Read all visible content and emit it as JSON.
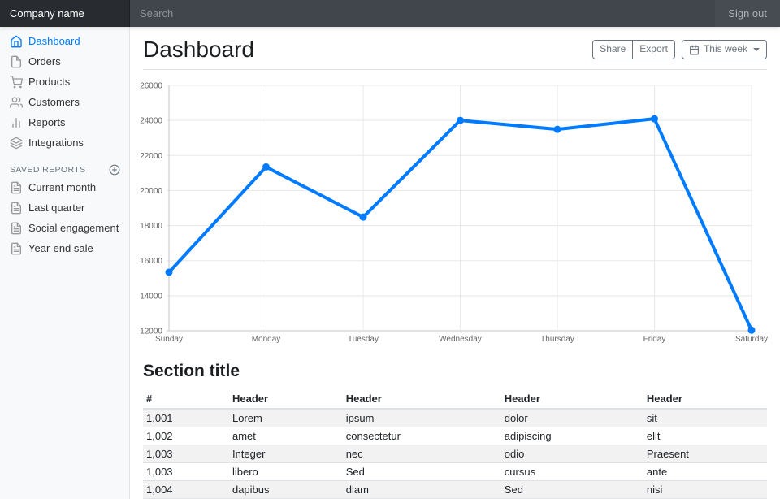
{
  "navbar": {
    "brand": "Company name",
    "search_placeholder": "Search",
    "sign_out": "Sign out"
  },
  "sidebar": {
    "items": [
      {
        "label": "Dashboard",
        "icon": "home",
        "active": true
      },
      {
        "label": "Orders",
        "icon": "file",
        "active": false
      },
      {
        "label": "Products",
        "icon": "shopping-cart",
        "active": false
      },
      {
        "label": "Customers",
        "icon": "users",
        "active": false
      },
      {
        "label": "Reports",
        "icon": "bar-chart-2",
        "active": false
      },
      {
        "label": "Integrations",
        "icon": "layers",
        "active": false
      }
    ],
    "saved_reports_heading": "Saved reports",
    "add_report_icon": "plus-circle",
    "saved_reports": [
      {
        "label": "Current month",
        "icon": "file-text"
      },
      {
        "label": "Last quarter",
        "icon": "file-text"
      },
      {
        "label": "Social engagement",
        "icon": "file-text"
      },
      {
        "label": "Year-end sale",
        "icon": "file-text"
      }
    ]
  },
  "header": {
    "title": "Dashboard",
    "share_label": "Share",
    "export_label": "Export",
    "period_label": "This week",
    "period_icon": "calendar"
  },
  "chart_data": {
    "type": "line",
    "categories": [
      "Sunday",
      "Monday",
      "Tuesday",
      "Wednesday",
      "Thursday",
      "Friday",
      "Saturday"
    ],
    "values": [
      15339,
      21345,
      18483,
      24003,
      23489,
      24092,
      12034
    ],
    "title": "",
    "xlabel": "",
    "ylabel": "",
    "ylim": [
      12000,
      26000
    ],
    "yticks": [
      12000,
      14000,
      16000,
      18000,
      20000,
      22000,
      24000,
      26000
    ],
    "grid": true,
    "legend": false,
    "line_color": "#007bff",
    "point_color": "#007bff"
  },
  "section": {
    "title": "Section title"
  },
  "table": {
    "headers": [
      "#",
      "Header",
      "Header",
      "Header",
      "Header"
    ],
    "rows": [
      [
        "1,001",
        "Lorem",
        "ipsum",
        "dolor",
        "sit"
      ],
      [
        "1,002",
        "amet",
        "consectetur",
        "adipiscing",
        "elit"
      ],
      [
        "1,003",
        "Integer",
        "nec",
        "odio",
        "Praesent"
      ],
      [
        "1,003",
        "libero",
        "Sed",
        "cursus",
        "ante"
      ],
      [
        "1,004",
        "dapibus",
        "diam",
        "Sed",
        "nisi"
      ]
    ]
  },
  "colors": {
    "accent": "#007bff",
    "navbar_bg": "#343a40",
    "sidebar_bg": "#f8f9fa",
    "grid_line": "#e8e8e8",
    "axis_line": "#c5c5c5"
  }
}
